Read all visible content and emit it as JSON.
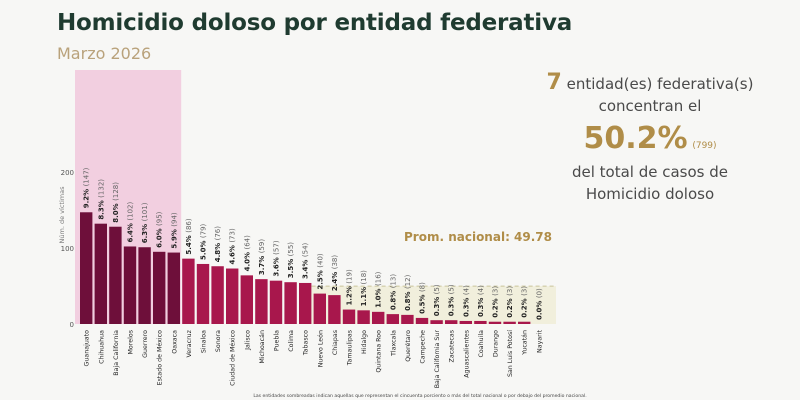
{
  "header": {
    "title": "Homicidio doloso por entidad federativa",
    "subtitle": "Marzo 2026"
  },
  "summary": {
    "count": "7",
    "line1": "entidad(es) federativa(s)",
    "line2": "concentran el",
    "pct": "50.2%",
    "cases": "(799)",
    "line3": "del total de casos de",
    "line4": "Homicidio doloso"
  },
  "colors": {
    "dark": "#6e0f3a",
    "main": "#a8174c",
    "highlight": "#f2cfe0",
    "below_avg": "#f1efdc",
    "gold": "#b08d48"
  },
  "chart_data": {
    "type": "bar",
    "ylabel": "Núm. de víctimas",
    "ylim": [
      0,
      200
    ],
    "yticks": [
      0,
      100,
      200
    ],
    "average_label": "Prom. nacional: 49.78",
    "average": 49.78,
    "highlighted_count": 7,
    "categories": [
      "Guanajuato",
      "Chihuahua",
      "Baja California",
      "Morelos",
      "Guerrero",
      "Estado de México",
      "Oaxaca",
      "Veracruz",
      "Sinaloa",
      "Sonora",
      "Ciudad de México",
      "Jalisco",
      "Michoacán",
      "Puebla",
      "Colima",
      "Tabasco",
      "Nuevo León",
      "Chiapas",
      "Tamaulipas",
      "Hidalgo",
      "Quintana Roo",
      "Tlaxcala",
      "Querétaro",
      "Campeche",
      "Baja California Sur",
      "Zacatecas",
      "Aguascalientes",
      "Coahuila",
      "Durango",
      "San Luis Potosí",
      "Yucatán",
      "Nayarit"
    ],
    "values": [
      147,
      132,
      128,
      102,
      101,
      95,
      94,
      86,
      79,
      76,
      73,
      64,
      59,
      57,
      55,
      54,
      40,
      38,
      19,
      18,
      16,
      13,
      12,
      8,
      5,
      5,
      4,
      4,
      3,
      3,
      3,
      0
    ],
    "percents": [
      "9.2%",
      "8.3%",
      "8.0%",
      "6.4%",
      "6.3%",
      "6.0%",
      "5.9%",
      "5.4%",
      "5.0%",
      "4.8%",
      "4.6%",
      "4.0%",
      "3.7%",
      "3.6%",
      "3.5%",
      "3.4%",
      "2.5%",
      "2.4%",
      "1.2%",
      "1.1%",
      "1.0%",
      "0.8%",
      "0.8%",
      "0.5%",
      "0.3%",
      "0.3%",
      "0.3%",
      "0.3%",
      "0.2%",
      "0.2%",
      "0.2%",
      "0.0%"
    ],
    "footnote": "Las entidades sombreadas indican aquellas que representan el cincuenta porciento o más del total nacional o por debajo del promedio nacional."
  }
}
